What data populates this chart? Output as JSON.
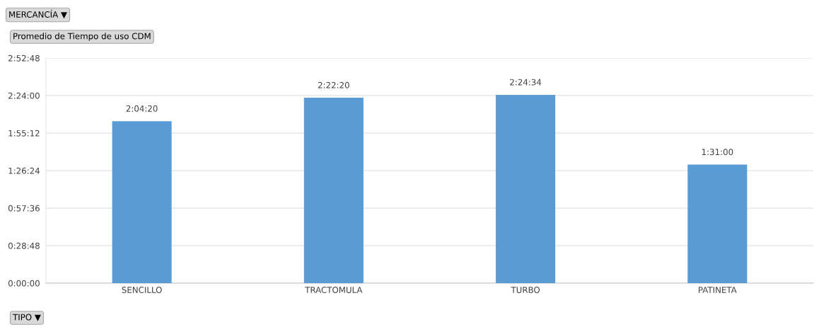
{
  "chart_data": {
    "type": "bar",
    "title": "Promedio de Tiempo de uso CDM",
    "categories": [
      "SENCILLO",
      "TRACTOMULA",
      "TURBO",
      "PATINETA"
    ],
    "values": [
      2.07222,
      2.37222,
      2.40944,
      1.51667
    ],
    "value_labels": [
      "2:04:20",
      "2:22:20",
      "2:24:34",
      "1:31:00"
    ],
    "color": "#5b9bd5",
    "ylim": [
      0,
      2.88
    ],
    "yticks": [
      {
        "value": 0,
        "label": "0:00:00"
      },
      {
        "value": 0.48,
        "label": "0:28:48"
      },
      {
        "value": 0.96,
        "label": "0:57:36"
      },
      {
        "value": 1.44,
        "label": "1:26:24"
      },
      {
        "value": 1.92,
        "label": "1:55:12"
      },
      {
        "value": 2.4,
        "label": "2:24:00"
      },
      {
        "value": 2.88,
        "label": "2:52:48"
      }
    ],
    "grid": "y",
    "annotations": [
      "MERCANCÍA ▼",
      "TIPO ▼"
    ]
  }
}
